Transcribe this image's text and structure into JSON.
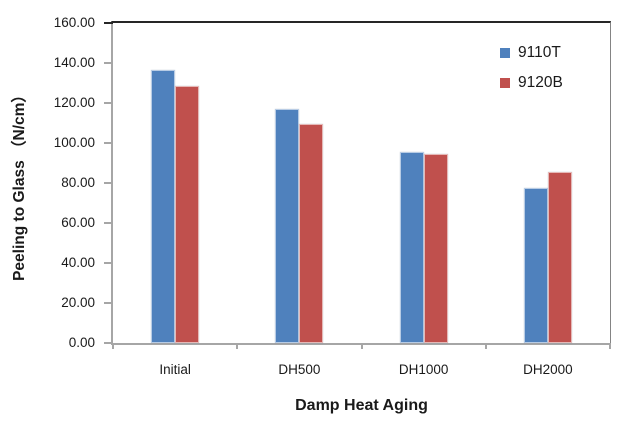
{
  "chart_data": {
    "type": "bar",
    "title": "",
    "categories": [
      "Initial",
      "DH500",
      "DH1000",
      "DH2000"
    ],
    "series": [
      {
        "name": "9110T",
        "color": "#4F81BD",
        "values": [
          136.5,
          117.0,
          95.5,
          77.5
        ]
      },
      {
        "name": "9120B",
        "color": "#C0504D",
        "values": [
          128.5,
          109.5,
          94.5,
          85.5
        ]
      }
    ],
    "xlabel": "Damp Heat Aging",
    "ylabel": "Peeling to Glass （N/cm）",
    "ylim": [
      0,
      160
    ],
    "ytick_step": 20,
    "ytick_labels": [
      "0.00",
      "20.00",
      "40.00",
      "60.00",
      "80.00",
      "100.00",
      "120.00",
      "140.00",
      "160.00"
    ],
    "grid": false,
    "legend_position": "top-right-inside",
    "legend": [
      "9110T",
      "9120B"
    ]
  },
  "colors": {
    "axis_line": "#A6A6A6",
    "plot_border_top": "#262626",
    "plot_border_right": "#848484",
    "text": "#1A1A1A",
    "background": "#FFFFFF"
  }
}
